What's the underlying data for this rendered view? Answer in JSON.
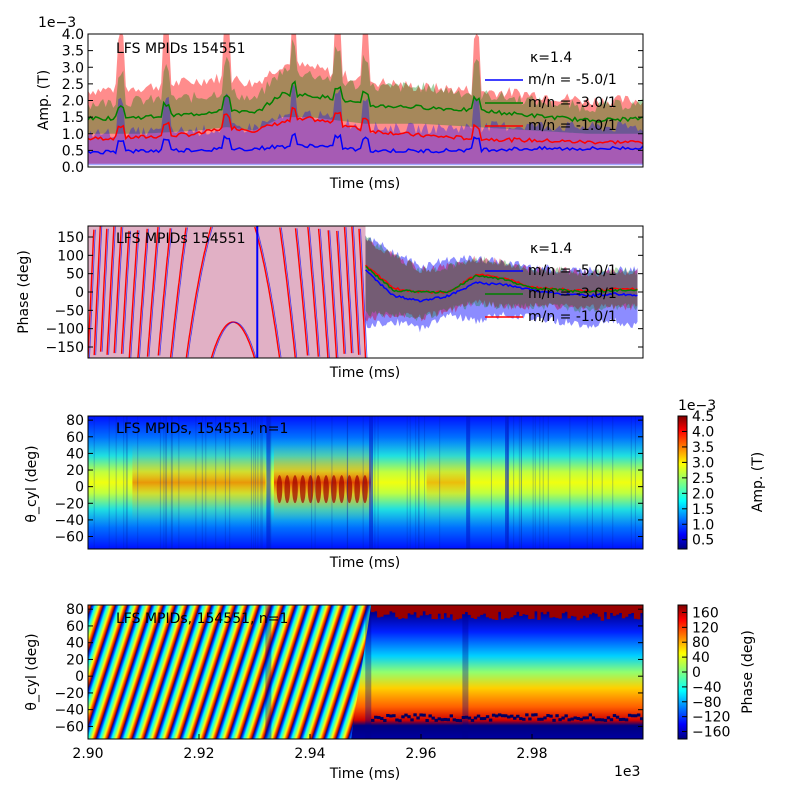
{
  "figure": {
    "panel_title_1": "LFS MPIDs 154551",
    "panel_title_2": "LFS MPIDs 154551",
    "panel_title_3": "LFS MPIDs, 154551, n=1",
    "panel_title_4": "LFS MPIDs, 154551, n=1",
    "kappa_label": "κ=1.4",
    "x_offset_label": "1e3",
    "amp_offset_label": "1e−3",
    "cbar_offset_label": "1e−3"
  },
  "chart_data": [
    {
      "type": "area",
      "title": "LFS MPIDs 154551",
      "xlabel": "Time (ms)",
      "ylabel": "Amp. (T)",
      "xlim": [
        2.9,
        3.0
      ],
      "ylim": [
        0.0,
        4.0
      ],
      "y_scale_note": "1e-3",
      "yticks": [
        "0.0",
        "0.5",
        "1.0",
        "1.5",
        "2.0",
        "2.5",
        "3.0",
        "3.5",
        "4.0"
      ],
      "legend_title": "κ=1.4",
      "legend_position": "top-right",
      "series": [
        {
          "name": "m/n = -5.0/1",
          "color": "#0000ff",
          "x": [
            2.9,
            2.91,
            2.92,
            2.93,
            2.933,
            2.94,
            2.95,
            2.96,
            2.97,
            2.98,
            2.99,
            2.999
          ],
          "y": [
            0.45,
            0.48,
            0.52,
            0.55,
            0.6,
            0.65,
            0.5,
            0.48,
            0.52,
            0.55,
            0.55,
            0.58
          ],
          "band_low": [
            0.05,
            0.05,
            0.05,
            0.05,
            0.05,
            0.05,
            0.05,
            0.05,
            0.05,
            0.05,
            0.05,
            0.05
          ],
          "band_high": [
            1.0,
            1.05,
            1.1,
            1.2,
            1.4,
            1.6,
            1.2,
            1.15,
            1.2,
            1.25,
            1.2,
            1.2
          ]
        },
        {
          "name": "m/n = -3.0/1",
          "color": "#008000",
          "x": [
            2.9,
            2.91,
            2.92,
            2.925,
            2.93,
            2.935,
            2.94,
            2.945,
            2.95,
            2.96,
            2.97,
            2.98,
            2.99,
            2.999
          ],
          "y": [
            1.45,
            1.5,
            1.6,
            1.75,
            1.6,
            2.2,
            2.15,
            2.05,
            1.85,
            1.8,
            1.7,
            1.55,
            1.4,
            1.45
          ],
          "band_low": [
            1.0,
            1.0,
            1.1,
            1.2,
            1.1,
            1.5,
            1.5,
            1.4,
            1.3,
            1.3,
            1.2,
            1.1,
            1.0,
            1.0
          ],
          "band_high": [
            1.9,
            2.0,
            2.1,
            2.3,
            2.0,
            2.9,
            2.8,
            2.6,
            2.4,
            2.4,
            2.2,
            2.0,
            1.8,
            1.9
          ]
        },
        {
          "name": "m/n = -1.0/1",
          "color": "#ff0000",
          "x": [
            2.9,
            2.91,
            2.92,
            2.925,
            2.93,
            2.935,
            2.94,
            2.945,
            2.95,
            2.96,
            2.97,
            2.98,
            2.99,
            2.999
          ],
          "y": [
            0.85,
            0.9,
            1.0,
            1.2,
            1.1,
            1.35,
            1.45,
            1.3,
            1.1,
            0.95,
            0.85,
            0.8,
            0.75,
            0.75
          ],
          "band_low": [
            0.1,
            0.1,
            0.1,
            0.1,
            0.1,
            0.1,
            0.1,
            0.1,
            0.1,
            0.1,
            0.1,
            0.1,
            0.1,
            0.1
          ],
          "band_high": [
            2.3,
            2.4,
            2.6,
            2.7,
            2.5,
            3.1,
            3.0,
            2.8,
            2.6,
            2.4,
            2.3,
            2.2,
            2.0,
            2.0
          ]
        }
      ],
      "spikes_x": [
        2.906,
        2.914,
        2.925,
        2.937,
        2.945,
        2.95,
        2.97
      ]
    },
    {
      "type": "line",
      "title": "LFS MPIDs 154551",
      "xlabel": "Time (ms)",
      "ylabel": "Phase (deg)",
      "xlim": [
        2.9,
        3.0
      ],
      "ylim": [
        -180,
        180
      ],
      "yticks": [
        "150",
        "100",
        "50",
        "0",
        "−50",
        "−100",
        "−150"
      ],
      "legend_title": "κ=1.4",
      "legend_position": "top-right",
      "series": [
        {
          "name": "m/n = -5.0/1",
          "color": "#0000ff",
          "x": [
            2.95,
            2.955,
            2.96,
            2.965,
            2.97,
            2.975,
            2.98,
            2.985,
            2.99,
            2.995,
            2.999
          ],
          "y": [
            60,
            -10,
            -25,
            -10,
            25,
            20,
            5,
            -5,
            -10,
            -5,
            -10
          ],
          "band_low": [
            -90,
            -80,
            -100,
            -60,
            -80,
            -60,
            -70,
            -80,
            -90,
            -80,
            -90
          ],
          "band_high": [
            150,
            110,
            70,
            90,
            90,
            80,
            70,
            60,
            60,
            60,
            60
          ]
        },
        {
          "name": "m/n = -3.0/1",
          "color": "#008000",
          "x": [
            2.95,
            2.955,
            2.96,
            2.965,
            2.97,
            2.975,
            2.98,
            2.985,
            2.99,
            2.995,
            2.999
          ],
          "y": [
            70,
            5,
            0,
            0,
            45,
            35,
            10,
            5,
            0,
            5,
            5
          ],
          "band_low": [
            -60,
            -60,
            -70,
            -50,
            -30,
            -40,
            -40,
            -40,
            -50,
            -40,
            -40
          ],
          "band_high": [
            150,
            100,
            60,
            70,
            90,
            80,
            60,
            60,
            50,
            60,
            55
          ]
        },
        {
          "name": "m/n = -1.0/1",
          "color": "#ff0000",
          "x": [
            2.95,
            2.955,
            2.96,
            2.965,
            2.97,
            2.975,
            2.98,
            2.985,
            2.99,
            2.995,
            2.999
          ],
          "y": [
            75,
            10,
            0,
            0,
            48,
            38,
            12,
            8,
            2,
            8,
            8
          ],
          "band_low": [
            -70,
            -65,
            -70,
            -50,
            -30,
            -40,
            -40,
            -40,
            -45,
            -40,
            -40
          ],
          "band_high": [
            140,
            100,
            60,
            70,
            90,
            80,
            60,
            60,
            50,
            55,
            55
          ]
        }
      ],
      "oscillation_region_ms": [
        2.9,
        2.95
      ]
    },
    {
      "type": "heatmap",
      "title": "LFS MPIDs, 154551, n=1",
      "xlabel": "Time (ms)",
      "ylabel": "θ_cyl (deg)",
      "xlim": [
        2.9,
        3.0
      ],
      "ylim": [
        -75,
        85
      ],
      "yticks": [
        "80",
        "60",
        "40",
        "20",
        "0",
        "−20",
        "−40",
        "−60"
      ],
      "colorbar_label": "Amp. (T)",
      "colorbar_scale_note": "1e-3",
      "colorbar_ticks": [
        "4.5",
        "4.0",
        "3.5",
        "3.0",
        "2.5",
        "2.0",
        "1.5",
        "1.0",
        "0.5"
      ],
      "colorbar_range": [
        0.2,
        4.5
      ],
      "colormap": "jet"
    },
    {
      "type": "heatmap",
      "title": "LFS MPIDs, 154551, n=1",
      "xlabel": "Time (ms)",
      "ylabel": "θ_cyl (deg)",
      "xlim": [
        2.9,
        3.0
      ],
      "ylim": [
        -75,
        85
      ],
      "xticks": [
        "2.90",
        "2.92",
        "2.94",
        "2.96",
        "2.98"
      ],
      "x_scale_note": "1e3",
      "yticks": [
        "80",
        "60",
        "40",
        "20",
        "0",
        "−20",
        "−40",
        "−60"
      ],
      "colorbar_label": "Phase (deg)",
      "colorbar_ticks": [
        "160",
        "120",
        "80",
        "40",
        "0",
        "−40",
        "−80",
        "−120",
        "−160"
      ],
      "colorbar_range": [
        -180,
        180
      ],
      "colormap": "jet"
    }
  ]
}
